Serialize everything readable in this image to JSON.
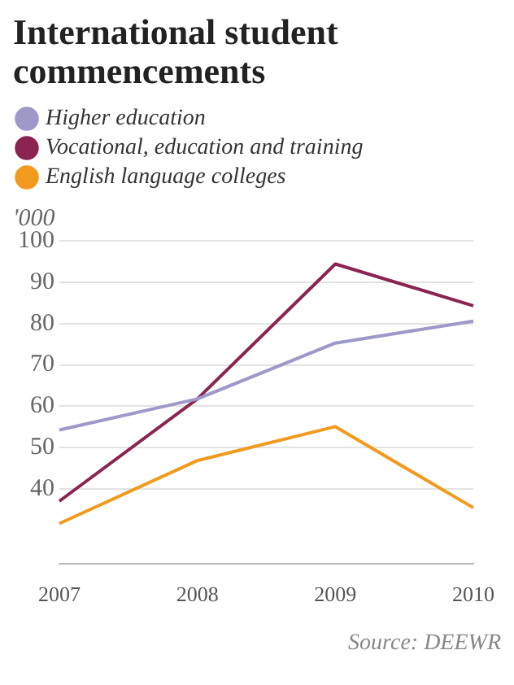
{
  "chart_data": {
    "type": "line",
    "title": "International student commencements",
    "ylabel": "'000",
    "categories": [
      "2007",
      "2008",
      "2009",
      "2010"
    ],
    "series": [
      {
        "name": "Higher education",
        "color": "#9d99c9",
        "values": [
          54.3,
          61.8,
          75.3,
          80.6
        ]
      },
      {
        "name": "Vocational, education and training",
        "color": "#8c2452",
        "values": [
          37.1,
          61.8,
          94.4,
          84.3
        ]
      },
      {
        "name": "English language colleges",
        "color": "#f29a1e",
        "values": [
          31.7,
          46.9,
          55.1,
          35.5
        ]
      }
    ],
    "ylim": [
      22,
      100
    ],
    "yticks": [
      40,
      50,
      60,
      70,
      80,
      90,
      100
    ],
    "grid": "y",
    "legend": "top left",
    "marker": "none",
    "line_style": "solid",
    "annotations": [
      "Source: DEEWR"
    ]
  }
}
